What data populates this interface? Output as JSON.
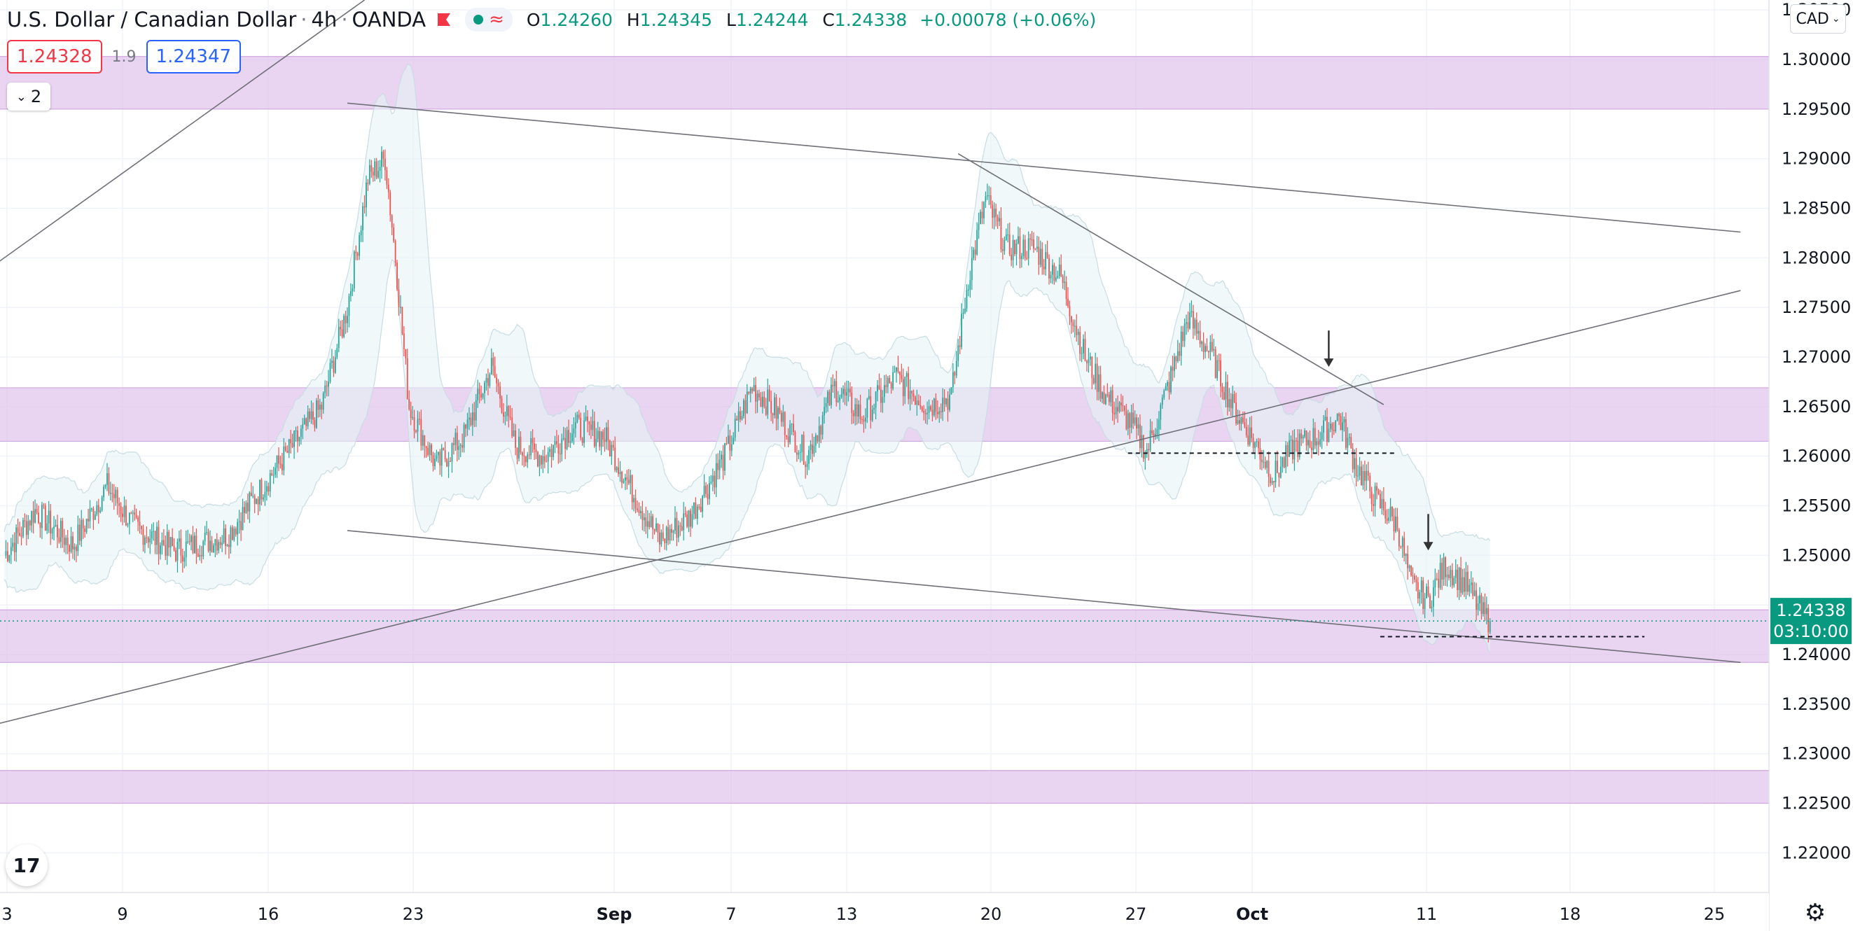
{
  "header": {
    "symbol": "U.S. Dollar / Canadian Dollar",
    "interval": "4h",
    "exchange": "OANDA",
    "ohlc": {
      "o_label": "O",
      "o": "1.24260",
      "h_label": "H",
      "h": "1.24345",
      "l_label": "L",
      "l": "1.24244",
      "c_label": "C",
      "c": "1.24338",
      "change": "+0.00078 (+0.06%)"
    },
    "flag_icon": "flag-icon",
    "wave_icon": "indicators-wave-icon"
  },
  "quote": {
    "sell": "1.24328",
    "spread": "1.9",
    "buy": "1.24347"
  },
  "indicator_toggle": {
    "count": "2"
  },
  "currency_button": {
    "label": "CAD"
  },
  "colors": {
    "up": "#26a69a",
    "down": "#ef5350",
    "zone": "#e1c6ec",
    "band": "#e6f4f7",
    "trendline": "#6f7078",
    "last_price_bg": "#089981"
  },
  "chart_data": {
    "type": "candlestick",
    "price_axis": {
      "ticks": [
        "1.30500",
        "1.30000",
        "1.29500",
        "1.29000",
        "1.28500",
        "1.28000",
        "1.27500",
        "1.27000",
        "1.26500",
        "1.26000",
        "1.25500",
        "1.25000",
        "1.24500",
        "1.24000",
        "1.23500",
        "1.23000",
        "1.22500",
        "1.22000"
      ],
      "ylim": [
        1.216,
        1.306
      ]
    },
    "time_axis": {
      "labels": [
        "3",
        "9",
        "16",
        "23",
        "Sep",
        "7",
        "13",
        "20",
        "27",
        "Oct",
        "11",
        "18",
        "25"
      ]
    },
    "last_price": {
      "value": "1.24338",
      "countdown": "03:10:00"
    },
    "zones": [
      {
        "from": 1.295,
        "to": 1.3003
      },
      {
        "from": 1.2615,
        "to": 1.2669
      },
      {
        "from": 1.2392,
        "to": 1.2445
      },
      {
        "from": 1.225,
        "to": 1.2283
      }
    ],
    "path": [
      {
        "t": 0,
        "p": 1.25
      },
      {
        "t": 18,
        "p": 1.2545
      },
      {
        "t": 40,
        "p": 1.251
      },
      {
        "t": 60,
        "p": 1.257
      },
      {
        "t": 75,
        "p": 1.253
      },
      {
        "t": 100,
        "p": 1.2505
      },
      {
        "t": 130,
        "p": 1.252
      },
      {
        "t": 155,
        "p": 1.258
      },
      {
        "t": 185,
        "p": 1.265
      },
      {
        "t": 200,
        "p": 1.275
      },
      {
        "t": 212,
        "p": 1.288
      },
      {
        "t": 222,
        "p": 1.29
      },
      {
        "t": 228,
        "p": 1.28
      },
      {
        "t": 236,
        "p": 1.265
      },
      {
        "t": 252,
        "p": 1.259
      },
      {
        "t": 268,
        "p": 1.262
      },
      {
        "t": 284,
        "p": 1.269
      },
      {
        "t": 298,
        "p": 1.261
      },
      {
        "t": 315,
        "p": 1.26
      },
      {
        "t": 332,
        "p": 1.263
      },
      {
        "t": 350,
        "p": 1.262
      },
      {
        "t": 366,
        "p": 1.2565
      },
      {
        "t": 382,
        "p": 1.2515
      },
      {
        "t": 400,
        "p": 1.254
      },
      {
        "t": 420,
        "p": 1.26
      },
      {
        "t": 436,
        "p": 1.267
      },
      {
        "t": 450,
        "p": 1.2645
      },
      {
        "t": 468,
        "p": 1.26
      },
      {
        "t": 484,
        "p": 1.267
      },
      {
        "t": 500,
        "p": 1.264
      },
      {
        "t": 520,
        "p": 1.268
      },
      {
        "t": 538,
        "p": 1.265
      },
      {
        "t": 552,
        "p": 1.266
      },
      {
        "t": 562,
        "p": 1.278
      },
      {
        "t": 572,
        "p": 1.286
      },
      {
        "t": 584,
        "p": 1.281
      },
      {
        "t": 600,
        "p": 1.281
      },
      {
        "t": 616,
        "p": 1.278
      },
      {
        "t": 630,
        "p": 1.27
      },
      {
        "t": 642,
        "p": 1.266
      },
      {
        "t": 656,
        "p": 1.2635
      },
      {
        "t": 666,
        "p": 1.2605
      },
      {
        "t": 680,
        "p": 1.268
      },
      {
        "t": 690,
        "p": 1.274
      },
      {
        "t": 704,
        "p": 1.27
      },
      {
        "t": 716,
        "p": 1.265
      },
      {
        "t": 730,
        "p": 1.261
      },
      {
        "t": 740,
        "p": 1.258
      },
      {
        "t": 752,
        "p": 1.261
      },
      {
        "t": 766,
        "p": 1.262
      },
      {
        "t": 778,
        "p": 1.264
      },
      {
        "t": 788,
        "p": 1.259
      },
      {
        "t": 800,
        "p": 1.2555
      },
      {
        "t": 812,
        "p": 1.253
      },
      {
        "t": 820,
        "p": 1.247
      },
      {
        "t": 830,
        "p": 1.2455
      },
      {
        "t": 840,
        "p": 1.249
      },
      {
        "t": 852,
        "p": 1.247
      },
      {
        "t": 862,
        "p": 1.244
      },
      {
        "t": 866,
        "p": 1.2434
      }
    ],
    "trendlines": [
      {
        "t1": -4,
        "p1": 1.2795,
        "t2": 210,
        "p2": 1.306
      },
      {
        "t1": 200,
        "p1": 1.2956,
        "t2": 1012,
        "p2": 1.2826
      },
      {
        "t1": -4,
        "p1": 1.233,
        "t2": 1012,
        "p2": 1.2767
      },
      {
        "t1": 200,
        "p1": 1.2525,
        "t2": 1012,
        "p2": 1.2392
      },
      {
        "t1": 556,
        "p1": 1.2905,
        "t2": 804,
        "p2": 1.2652
      }
    ],
    "dashed_levels": [
      {
        "t1": 655,
        "t2": 812,
        "p": 1.2603
      },
      {
        "t1": 802,
        "t2": 956,
        "p": 1.2418
      }
    ],
    "arrows": [
      {
        "t": 772,
        "p": 1.269
      },
      {
        "t": 830,
        "p": 1.2505
      }
    ]
  }
}
